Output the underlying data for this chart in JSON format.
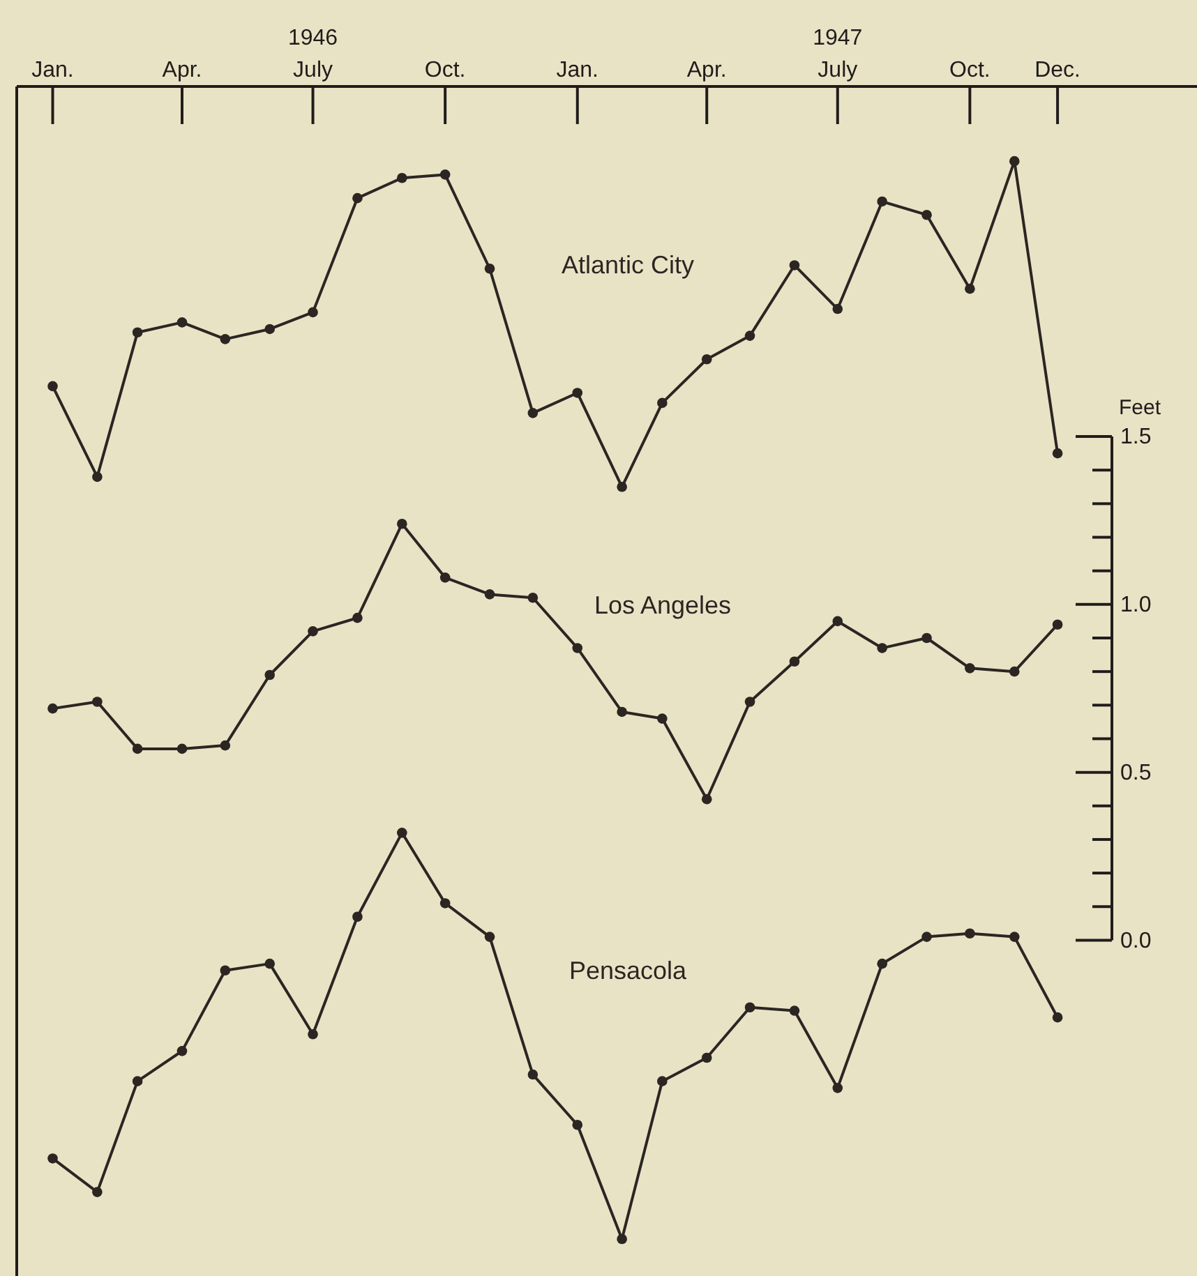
{
  "chart_data": {
    "type": "line",
    "x": [
      "1946-01",
      "1946-02",
      "1946-03",
      "1946-04",
      "1946-05",
      "1946-06",
      "1946-07",
      "1946-08",
      "1946-09",
      "1946-10",
      "1946-11",
      "1946-12",
      "1947-01",
      "1947-02",
      "1947-03",
      "1947-04",
      "1947-05",
      "1947-06",
      "1947-07",
      "1947-08",
      "1947-09",
      "1947-10",
      "1947-11",
      "1947-12"
    ],
    "series": [
      {
        "name": "Atlantic City",
        "color": "#2b2622",
        "values": [
          1.65,
          1.38,
          1.81,
          1.84,
          1.79,
          1.82,
          1.87,
          2.21,
          2.27,
          2.28,
          2.0,
          1.57,
          1.63,
          1.35,
          1.6,
          1.73,
          1.8,
          2.01,
          1.88,
          2.2,
          2.16,
          1.94,
          2.32,
          1.45
        ]
      },
      {
        "name": "Los Angeles",
        "color": "#2b2622",
        "values": [
          0.69,
          0.71,
          0.57,
          0.57,
          0.58,
          0.79,
          0.92,
          0.96,
          1.24,
          1.08,
          1.03,
          1.02,
          0.87,
          0.68,
          0.66,
          0.42,
          0.71,
          0.83,
          0.95,
          0.87,
          0.9,
          0.81,
          0.8,
          0.94
        ]
      },
      {
        "name": "Pensacola",
        "color": "#2b2622",
        "values": [
          -0.65,
          -0.75,
          -0.42,
          -0.33,
          -0.09,
          -0.07,
          -0.28,
          0.07,
          0.32,
          0.11,
          0.01,
          -0.4,
          -0.55,
          -0.89,
          -0.42,
          -0.35,
          -0.2,
          -0.21,
          -0.44,
          -0.07,
          0.01,
          0.02,
          0.01,
          -0.23
        ]
      }
    ],
    "xlim": [
      "1945-12-07",
      "1948-03-07"
    ],
    "xticks": [
      {
        "value": "1946-01",
        "label": "Jan."
      },
      {
        "value": "1946-04",
        "label": "Apr."
      },
      {
        "value": "1946-07",
        "label": "July"
      },
      {
        "value": "1946-10",
        "label": "Oct."
      },
      {
        "value": "1947-01",
        "label": "Jan."
      },
      {
        "value": "1947-04",
        "label": "Apr."
      },
      {
        "value": "1947-07",
        "label": "July"
      },
      {
        "value": "1947-10",
        "label": "Oct."
      },
      {
        "value": "1947-12",
        "label": "Dec."
      }
    ],
    "x2lim": [
      "1945-12-07",
      "1948-03-07"
    ],
    "x2ticks": [
      {
        "value": "1946-07",
        "label": "1946"
      },
      {
        "value": "1947-07",
        "label": "1947"
      }
    ],
    "ylim": [
      -1.0,
      2.8
    ],
    "yticks": [
      {
        "value": 0,
        "label": "0.0"
      },
      {
        "value": 0.5,
        "label": "0.5"
      },
      {
        "value": 1.0,
        "label": "1.0"
      },
      {
        "value": 1.5,
        "label": "1.5"
      }
    ],
    "ylabel": "Feet",
    "marker": "circle",
    "line_style": "solid",
    "grid": false,
    "legend": false
  }
}
